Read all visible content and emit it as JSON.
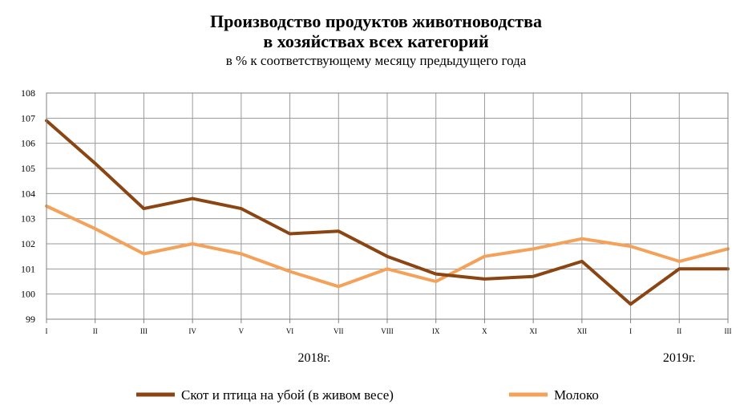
{
  "chart_data": {
    "type": "line",
    "title": [
      "Производство продуктов животноводства",
      "в хозяйствах всех категорий"
    ],
    "subtitle": "в % к соответствующему месяцу предыдущего года",
    "xlabel": "",
    "ylabel": "",
    "categories": [
      "I",
      "II",
      "III",
      "IV",
      "V",
      "VI",
      "VII",
      "VIII",
      "IX",
      "X",
      "XI",
      "XII",
      "I",
      "II",
      "III"
    ],
    "year_labels": [
      {
        "label": "2018г.",
        "from_index": 0,
        "to_index": 11
      },
      {
        "label": "2019г.",
        "from_index": 12,
        "to_index": 14
      }
    ],
    "ylim": [
      99,
      108
    ],
    "yticks": [
      99,
      100,
      101,
      102,
      103,
      104,
      105,
      106,
      107,
      108
    ],
    "grid": true,
    "legend_position": "bottom",
    "series": [
      {
        "name": "Скот и птица на убой (в живом весе)",
        "color": "#8B4513",
        "values": [
          106.9,
          105.2,
          103.4,
          103.8,
          103.4,
          102.4,
          102.5,
          101.5,
          100.8,
          100.6,
          100.7,
          101.3,
          99.6,
          101.0,
          101.0
        ]
      },
      {
        "name": "Молоко",
        "color": "#F4A15A",
        "values": [
          103.5,
          102.6,
          101.6,
          102.0,
          101.6,
          100.9,
          100.3,
          101.0,
          100.5,
          101.5,
          101.8,
          102.2,
          101.9,
          101.3,
          101.8
        ]
      }
    ]
  }
}
